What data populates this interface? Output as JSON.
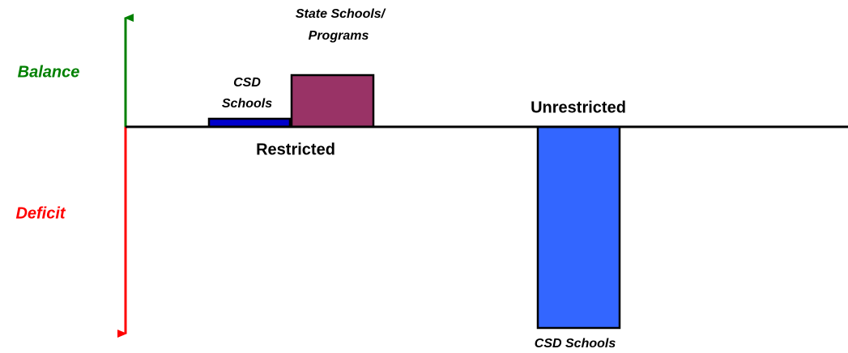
{
  "axis": {
    "up": "Balance",
    "down": "Deficit"
  },
  "groups": [
    {
      "label": "Restricted",
      "bars": [
        {
          "label": [
            "CSD",
            "Schools"
          ]
        },
        {
          "label": [
            "State Schools/",
            "Programs"
          ]
        }
      ]
    },
    {
      "label": "Unrestricted",
      "bars": [
        {
          "label": [
            "CSD Schools"
          ]
        }
      ]
    }
  ]
}
